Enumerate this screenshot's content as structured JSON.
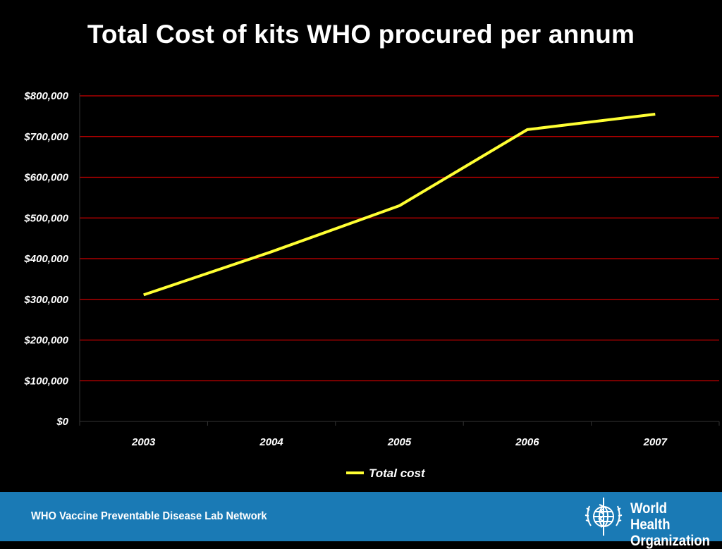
{
  "slide": {
    "title": "Total Cost of kits WHO procured per annum"
  },
  "chart_data": {
    "type": "line",
    "title": "",
    "xlabel": "",
    "ylabel": "",
    "categories": [
      "2003",
      "2004",
      "2005",
      "2006",
      "2007"
    ],
    "series": [
      {
        "name": "Total cost",
        "values": [
          311000,
          417000,
          530000,
          717000,
          755000
        ]
      }
    ],
    "ylim": [
      0,
      800000
    ],
    "y_ticks": [
      "$0",
      "$100,000",
      "$200,000",
      "$300,000",
      "$400,000",
      "$500,000",
      "$600,000",
      "$700,000",
      "$800,000"
    ],
    "y_tick_values": [
      0,
      100000,
      200000,
      300000,
      400000,
      500000,
      600000,
      700000,
      800000
    ],
    "grid": true,
    "legend_position": "bottom",
    "colors": {
      "line": "#ffff33",
      "grid": "#cc0000",
      "axis": "#333333",
      "text": "#ffffff"
    }
  },
  "footer": {
    "text": "WHO Vaccine Preventable Disease Lab Network",
    "bar_color": "#1a7ab5",
    "logo": {
      "icon": "who-emblem-icon",
      "line1": "World Health",
      "line2": "Organization"
    }
  }
}
